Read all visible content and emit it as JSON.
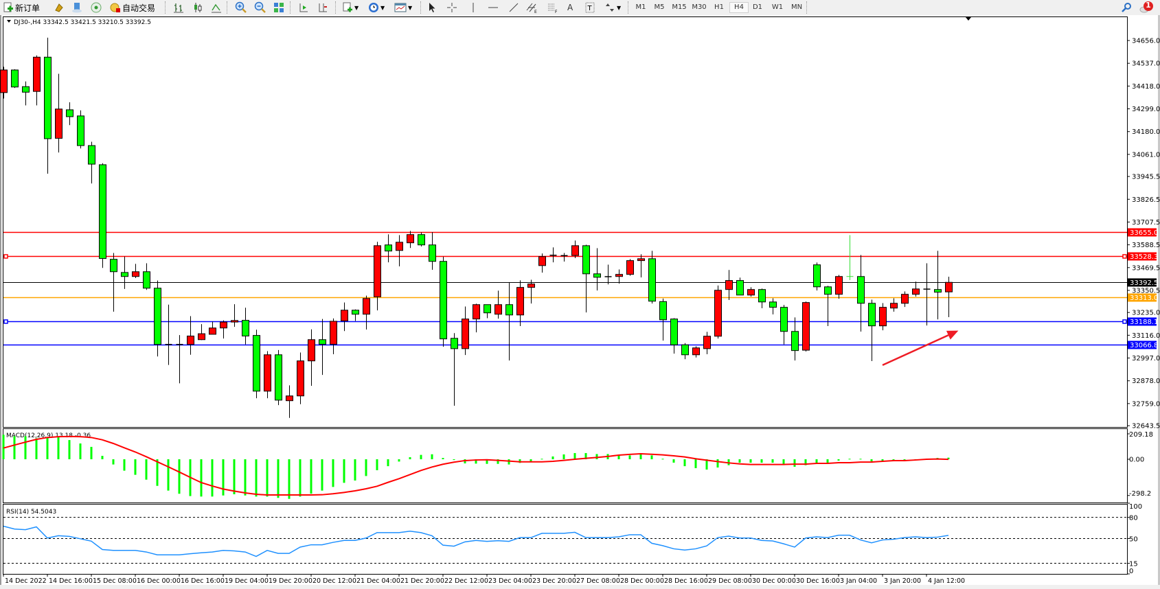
{
  "toolbar": {
    "new_order_label": "新订单",
    "auto_trading_label": "自动交易",
    "icons": [
      "new-order-icon",
      "expert-advisors-icon",
      "market-watch-icon",
      "signals-icon",
      "auto-trading-icon",
      "bar-chart-icon",
      "candlestick-icon",
      "line-chart-icon",
      "zoom-in-icon",
      "zoom-out-icon",
      "tile-windows-icon",
      "auto-scroll-icon",
      "chart-shift-icon",
      "new-chart-icon",
      "periods-icon",
      "templates-icon",
      "cursor-icon",
      "crosshair-icon",
      "vertical-line-icon",
      "horizontal-line-icon",
      "trendline-icon",
      "equidistant-channel-icon",
      "fibonacci-icon",
      "text-icon",
      "text-label-icon",
      "arrows-icon"
    ],
    "text_tool_label": "A",
    "timeframes": [
      "M1",
      "M5",
      "M15",
      "M30",
      "H1",
      "H4",
      "D1",
      "W1",
      "MN"
    ],
    "active_timeframe": "H4",
    "notification_count": "1"
  },
  "chart": {
    "header": "DJ30-,H4  33342.5 33421.5 33210.5 33392.5",
    "colors": {
      "bull_body": "#ff0000",
      "bear_body": "#00ff00",
      "outline": "#000000",
      "macd_hist": "#00ff00",
      "macd_signal": "#ff0000",
      "rsi_line": "#1e90ff",
      "arrow": "#ee1c25"
    },
    "price_ticks": [
      "34656.0",
      "34537.0",
      "34418.0",
      "34299.0",
      "34180.0",
      "34061.0",
      "33945.5",
      "33826.5",
      "33707.5",
      "33588.5",
      "33469.5",
      "33350.5",
      "33235.0",
      "33116.0",
      "32997.0",
      "32878.0",
      "32759.0",
      "32643.5"
    ],
    "levels": [
      {
        "price": "33655.0",
        "color": "#ff0000",
        "text_color": "#ffffff"
      },
      {
        "price": "33528.3",
        "color": "#ff0000",
        "text_color": "#ffffff",
        "selected": true
      },
      {
        "price": "33392.5",
        "color": "#000000",
        "text_color": "#ffffff",
        "kind": "bid"
      },
      {
        "price": "33313.0",
        "color": "#ffa500",
        "text_color": "#ffffff"
      },
      {
        "price": "33188.1",
        "color": "#0000ff",
        "text_color": "#ffffff",
        "selected": true
      },
      {
        "price": "33066.8",
        "color": "#0000ff",
        "text_color": "#ffffff"
      }
    ],
    "time_labels": [
      "14 Dec 2022",
      "14 Dec 16:00",
      "15 Dec 08:00",
      "16 Dec 00:00",
      "16 Dec 16:00",
      "19 Dec 04:00",
      "19 Dec 20:00",
      "20 Dec 12:00",
      "21 Dec 04:00",
      "21 Dec 20:00",
      "22 Dec 12:00",
      "23 Dec 04:00",
      "23 Dec 20:00",
      "27 Dec 08:00",
      "28 Dec 00:00",
      "28 Dec 16:00",
      "29 Dec 08:00",
      "30 Dec 00:00",
      "30 Dec 16:00",
      "3 Jan 04:00",
      "3 Jan 20:00",
      "4 Jan 12:00"
    ],
    "arrow": {
      "from_price": 32960,
      "to_price": 33140,
      "from_bar": 80,
      "to_bar": 86.9
    }
  },
  "chart_data": {
    "type": "candlestick",
    "symbol": "DJ30-",
    "timeframe": "H4",
    "ylim": [
      32643.5,
      34656.0
    ],
    "ohlc": [
      [
        34384,
        34519,
        34353,
        34502
      ],
      [
        34502,
        34506,
        34408,
        34413
      ],
      [
        34415,
        34442,
        34317,
        34386
      ],
      [
        34390,
        34578,
        34317,
        34569
      ],
      [
        34569,
        34671,
        33960,
        34143
      ],
      [
        34145,
        34482,
        34071,
        34298
      ],
      [
        34294,
        34333,
        34214,
        34258
      ],
      [
        34262,
        34291,
        34092,
        34107
      ],
      [
        34107,
        34127,
        33909,
        34010
      ],
      [
        34007,
        34015,
        33468,
        33517
      ],
      [
        33513,
        33546,
        33239,
        33448
      ],
      [
        33444,
        33527,
        33358,
        33423
      ],
      [
        33423,
        33489,
        33415,
        33448
      ],
      [
        33448,
        33492,
        33353,
        33362
      ],
      [
        33362,
        33402,
        33005,
        33068
      ],
      [
        33068,
        33276,
        32961,
        33066
      ],
      [
        33066,
        33117,
        32865,
        33068
      ],
      [
        33068,
        33216,
        33014,
        33112
      ],
      [
        33093,
        33174,
        33091,
        33124
      ],
      [
        33121,
        33187,
        33121,
        33154
      ],
      [
        33154,
        33194,
        33099,
        33185
      ],
      [
        33185,
        33278,
        33160,
        33193
      ],
      [
        33194,
        33260,
        33068,
        33112
      ],
      [
        33115,
        33145,
        32787,
        32824
      ],
      [
        32824,
        33033,
        32787,
        33014
      ],
      [
        33014,
        33039,
        32751,
        32777
      ],
      [
        32774,
        32854,
        32684,
        32799
      ],
      [
        32799,
        33026,
        32756,
        32982
      ],
      [
        32982,
        33147,
        32852,
        33093
      ],
      [
        33093,
        33201,
        32909,
        33069
      ],
      [
        33069,
        33204,
        33017,
        33189
      ],
      [
        33191,
        33287,
        33138,
        33247
      ],
      [
        33247,
        33251,
        33191,
        33226
      ],
      [
        33226,
        33323,
        33146,
        33308
      ],
      [
        33317,
        33604,
        33246,
        33584
      ],
      [
        33588,
        33643,
        33497,
        33556
      ],
      [
        33559,
        33639,
        33476,
        33602
      ],
      [
        33599,
        33661,
        33572,
        33642
      ],
      [
        33642,
        33653,
        33580,
        33588
      ],
      [
        33588,
        33655,
        33458,
        33502
      ],
      [
        33502,
        33526,
        33056,
        33097
      ],
      [
        33100,
        33127,
        32748,
        33046
      ],
      [
        33046,
        33266,
        33013,
        33201
      ],
      [
        33201,
        33281,
        33131,
        33276
      ],
      [
        33276,
        33276,
        33205,
        33233
      ],
      [
        33226,
        33349,
        33203,
        33276
      ],
      [
        33276,
        33392,
        32984,
        33222
      ],
      [
        33222,
        33403,
        33164,
        33366
      ],
      [
        33366,
        33406,
        33282,
        33384
      ],
      [
        33480,
        33543,
        33443,
        33527
      ],
      [
        33533,
        33575,
        33497,
        33534
      ],
      [
        33531,
        33546,
        33501,
        33532
      ],
      [
        33533,
        33611,
        33519,
        33584
      ],
      [
        33584,
        33589,
        33235,
        33437
      ],
      [
        33437,
        33571,
        33350,
        33419
      ],
      [
        33422,
        33485,
        33382,
        33421
      ],
      [
        33423,
        33460,
        33386,
        33434
      ],
      [
        33434,
        33514,
        33427,
        33506
      ],
      [
        33506,
        33539,
        33418,
        33516
      ],
      [
        33516,
        33557,
        33282,
        33294
      ],
      [
        33292,
        33308,
        33088,
        33197
      ],
      [
        33201,
        33205,
        33020,
        33066
      ],
      [
        33066,
        33075,
        32991,
        33014
      ],
      [
        33014,
        33058,
        33000,
        33050
      ],
      [
        33046,
        33134,
        33017,
        33111
      ],
      [
        33111,
        33376,
        33099,
        33351
      ],
      [
        33355,
        33457,
        33300,
        33402
      ],
      [
        33402,
        33417,
        33326,
        33326
      ],
      [
        33326,
        33367,
        33318,
        33355
      ],
      [
        33355,
        33360,
        33257,
        33290
      ],
      [
        33290,
        33309,
        33225,
        33262
      ],
      [
        33262,
        33274,
        33068,
        33136
      ],
      [
        33136,
        33209,
        32984,
        33036
      ],
      [
        33038,
        33292,
        33031,
        33287
      ],
      [
        33484,
        33496,
        33350,
        33369
      ],
      [
        33369,
        33374,
        33164,
        33330
      ],
      [
        33330,
        33431,
        33307,
        33423
      ],
      [
        33423,
        33639,
        33404,
        33423
      ],
      [
        33423,
        33535,
        33135,
        33283
      ],
      [
        33283,
        33302,
        32981,
        33165
      ],
      [
        33165,
        33284,
        33142,
        33262
      ],
      [
        33258,
        33309,
        33239,
        33283
      ],
      [
        33283,
        33345,
        33264,
        33330
      ],
      [
        33330,
        33396,
        33318,
        33358
      ],
      [
        33357,
        33492,
        33167,
        33357
      ],
      [
        33355,
        33557,
        33199,
        33341
      ],
      [
        33342.5,
        33421.5,
        33210.5,
        33392.5
      ]
    ],
    "highlighted_bar": 77,
    "macd": {
      "label": "MACD(12,26,9) 13.18 -0.36",
      "ylim": [
        -298.2,
        209.18
      ],
      "tick_labels": [
        "209.18",
        "0.00",
        "-298.2"
      ],
      "main": [
        202,
        190,
        190,
        173,
        183,
        186,
        158,
        130,
        102,
        28,
        -43,
        -94,
        -128,
        -168,
        -219,
        -258,
        -284,
        -303,
        -307,
        -307,
        -298,
        -288,
        -298,
        -307,
        -307,
        -318,
        -326,
        -307,
        -283,
        -258,
        -228,
        -194,
        -175,
        -138,
        -90,
        -57,
        -19,
        17,
        36,
        41,
        11,
        -6,
        -34,
        -36,
        -38,
        -38,
        -43,
        -30,
        -17,
        4,
        23,
        40,
        51,
        51,
        43,
        43,
        36,
        32,
        47,
        32,
        4,
        -28,
        -57,
        -73,
        -85,
        -68,
        -49,
        -28,
        -28,
        -28,
        -28,
        -40,
        -62,
        -49,
        -36,
        -28,
        -11,
        4,
        4,
        -17,
        -17,
        -11,
        -4,
        0,
        2,
        11,
        13.18
      ],
      "signal": [
        92,
        117,
        141,
        164,
        179,
        186,
        188,
        186,
        179,
        160,
        130,
        94,
        60,
        21,
        -21,
        -62,
        -105,
        -149,
        -192,
        -220,
        -245,
        -262,
        -277,
        -288,
        -294,
        -294,
        -294,
        -294,
        -294,
        -292,
        -284,
        -273,
        -260,
        -243,
        -222,
        -190,
        -160,
        -126,
        -92,
        -64,
        -41,
        -24,
        -11,
        -6,
        -4,
        -9,
        -15,
        -21,
        -21,
        -21,
        -17,
        -9,
        0,
        8,
        15,
        23,
        34,
        40,
        45,
        41,
        36,
        28,
        19,
        4,
        -8,
        -19,
        -30,
        -38,
        -43,
        -43,
        -43,
        -43,
        -40,
        -40,
        -34,
        -34,
        -28,
        -28,
        -23,
        -23,
        -17,
        -11,
        -11,
        -6,
        0,
        2,
        -0.36
      ]
    },
    "rsi": {
      "label": "RSI(14) 54.5043",
      "ylim": [
        0,
        100
      ],
      "tick_labels": [
        "100",
        "80",
        "50",
        "15",
        "0"
      ],
      "levels": [
        80,
        50,
        15
      ],
      "values": [
        67.5,
        63.5,
        62.5,
        66.5,
        50.7,
        54,
        53,
        49.7,
        46.3,
        34.5,
        33.2,
        33.2,
        33.2,
        31,
        27,
        27,
        27,
        28.5,
        29.8,
        31,
        33.2,
        32.5,
        31,
        24.7,
        33.2,
        29,
        29,
        37.9,
        41.2,
        41.2,
        44.6,
        47.3,
        47.3,
        50.7,
        58.4,
        58.4,
        58.4,
        60.4,
        58.4,
        54,
        40.6,
        39.2,
        45.3,
        47.3,
        46,
        47,
        46,
        51.3,
        51.3,
        57.4,
        57.4,
        57.4,
        58.8,
        51.3,
        51.3,
        51.3,
        52.4,
        55.4,
        55.4,
        43.3,
        39.9,
        35.5,
        33.8,
        35.5,
        39.6,
        51.3,
        53.4,
        50.7,
        50.7,
        47.3,
        46.6,
        42.6,
        37.9,
        50.7,
        52.4,
        51.3,
        54.7,
        54.7,
        48,
        43.9,
        48,
        49,
        51.3,
        52.4,
        51.3,
        52,
        54.5043
      ]
    }
  }
}
